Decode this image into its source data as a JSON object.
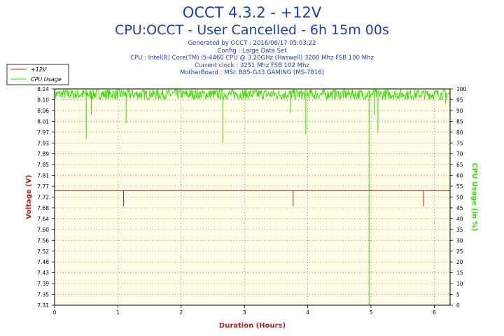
{
  "title": "OCCT 4.3.2 - +12V",
  "subtitle": "CPU:OCCT - User Cancelled - 6h 15m 00s",
  "info_lines": [
    "Generated by OCCT : 2016/06/17 05:03:22",
    "Config : Large Data Set",
    "CPU : Intel(R) Core(TM) i5-4460 CPU @ 3.20GHz (Haswell) 3200 Mhz FSB 100 Mhz",
    "Current clock : 3251 Mhz FSB 102 Mhz",
    "MotherBoard : MSI: B85-G43 GAMING (MS-7816)"
  ],
  "colors": {
    "voltage": "#b22222",
    "cpu": "#33dd00",
    "plot_bg": "#fffde6",
    "title": "#1a3cc8"
  },
  "chart_data": {
    "type": "line",
    "xlabel": "Duration (Hours)",
    "ylabel": "Voltage (V)",
    "y2label": "CPU Usage (in %)",
    "xlim": [
      0,
      6.25
    ],
    "ylim": [
      7.31,
      8.14
    ],
    "y2lim": [
      0,
      100
    ],
    "x_ticks": [
      0,
      1,
      2,
      3,
      4,
      5,
      6
    ],
    "y_ticks": [
      "8.14",
      "8.10",
      "8.06",
      "8.01",
      "7.97",
      "7.93",
      "7.89",
      "7.85",
      "7.81",
      "7.77",
      "7.72",
      "7.68",
      "7.64",
      "7.60",
      "7.56",
      "7.52",
      "7.48",
      "7.43",
      "7.39",
      "7.35",
      "7.31"
    ],
    "y2_ticks": [
      0,
      5,
      10,
      15,
      20,
      25,
      30,
      35,
      40,
      45,
      50,
      55,
      60,
      65,
      70,
      75,
      80,
      85,
      90,
      95,
      100
    ],
    "grid": true,
    "legend_position": "top-left",
    "series": [
      {
        "name": "+12V",
        "axis": "left",
        "baseline": 7.75,
        "dips": [
          {
            "x": 1.09,
            "y": 7.69
          },
          {
            "x": 3.77,
            "y": 7.69
          },
          {
            "x": 5.83,
            "y": 7.69
          }
        ]
      },
      {
        "name": "CPU Usage",
        "axis": "right",
        "band": [
          95,
          100
        ],
        "dips": [
          {
            "x": 0.5,
            "y": 77
          },
          {
            "x": 0.58,
            "y": 88
          },
          {
            "x": 1.13,
            "y": 84
          },
          {
            "x": 2.66,
            "y": 75
          },
          {
            "x": 3.73,
            "y": 89
          },
          {
            "x": 3.97,
            "y": 79
          },
          {
            "x": 4.97,
            "y": 0
          },
          {
            "x": 5.05,
            "y": 88
          },
          {
            "x": 5.11,
            "y": 80
          },
          {
            "x": 6.18,
            "y": 93
          }
        ]
      }
    ]
  }
}
